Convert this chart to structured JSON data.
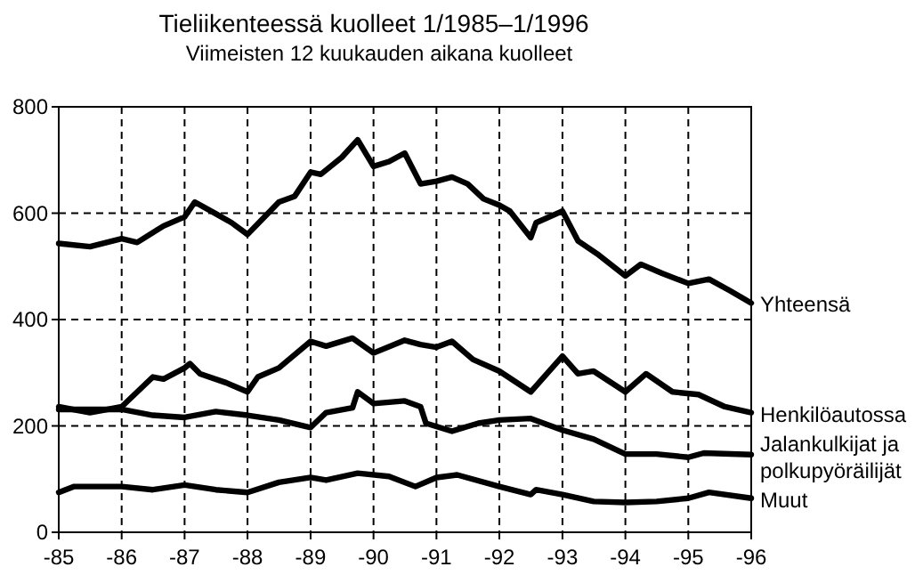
{
  "chart_data": {
    "type": "line",
    "title": "Tieliikenteessä kuolleet 1/1985–1/1996",
    "subtitle": "Viimeisten 12 kuukauden aikana kuolleet",
    "xlim": [
      "1985-01",
      "1996-01"
    ],
    "xticks": [
      {
        "value": "1985-01",
        "label": "-85"
      },
      {
        "value": "1986-01",
        "label": "-86"
      },
      {
        "value": "1987-01",
        "label": "-87"
      },
      {
        "value": "1988-01",
        "label": "-88"
      },
      {
        "value": "1989-01",
        "label": "-89"
      },
      {
        "value": "1990-01",
        "label": "-90"
      },
      {
        "value": "1991-01",
        "label": "-91"
      },
      {
        "value": "1992-01",
        "label": "-92"
      },
      {
        "value": "1993-01",
        "label": "-93"
      },
      {
        "value": "1994-01",
        "label": "-94"
      },
      {
        "value": "1995-01",
        "label": "-95"
      },
      {
        "value": "1996-01",
        "label": "-96"
      }
    ],
    "ylim": [
      0,
      800
    ],
    "yticks": [
      0,
      200,
      400,
      600,
      800
    ],
    "grid": true,
    "marker": "none",
    "line_style": "solid",
    "series": [
      {
        "name": "Yhteensä",
        "color": "#000000",
        "x": [
          "1985-01",
          "1985-07",
          "1986-01",
          "1986-04",
          "1986-09",
          "1987-01",
          "1987-03",
          "1987-07",
          "1987-10",
          "1988-01",
          "1988-07",
          "1988-10",
          "1989-01",
          "1989-03",
          "1989-07",
          "1989-10",
          "1990-01",
          "1990-04",
          "1990-07",
          "1990-10",
          "1991-01",
          "1991-04",
          "1991-07",
          "1991-10",
          "1992-01",
          "1992-03",
          "1992-07",
          "1992-08",
          "1993-01",
          "1993-04",
          "1993-08",
          "1994-01",
          "1994-04",
          "1994-08",
          "1995-01",
          "1995-05",
          "1995-09",
          "1996-01"
        ],
        "values": [
          543,
          537,
          552,
          545,
          576,
          593,
          621,
          599,
          582,
          560,
          621,
          632,
          677,
          673,
          705,
          738,
          688,
          697,
          713,
          655,
          660,
          668,
          655,
          627,
          615,
          604,
          554,
          582,
          604,
          548,
          521,
          482,
          504,
          487,
          468,
          476,
          454,
          431
        ]
      },
      {
        "name": "Henkilöautossa",
        "color": "#000000",
        "x": [
          "1985-01",
          "1985-07",
          "1986-01",
          "1986-07",
          "1986-09",
          "1987-01",
          "1987-02",
          "1987-04",
          "1987-09",
          "1988-01",
          "1988-03",
          "1988-07",
          "1989-01",
          "1989-04",
          "1989-09",
          "1990-01",
          "1990-07",
          "1990-10",
          "1991-01",
          "1991-04",
          "1991-08",
          "1992-01",
          "1992-07",
          "1993-01",
          "1993-04",
          "1993-07",
          "1994-01",
          "1994-05",
          "1994-10",
          "1995-03",
          "1995-08",
          "1996-01"
        ],
        "values": [
          236,
          225,
          236,
          292,
          288,
          309,
          317,
          298,
          281,
          264,
          292,
          309,
          359,
          350,
          365,
          337,
          361,
          353,
          348,
          359,
          325,
          303,
          264,
          331,
          298,
          303,
          264,
          298,
          264,
          259,
          236,
          225
        ]
      },
      {
        "name": "Jalankulkijat ja polkupyöräilijät",
        "color": "#000000",
        "x": [
          "1985-01",
          "1985-07",
          "1986-01",
          "1986-07",
          "1987-01",
          "1987-07",
          "1988-01",
          "1988-07",
          "1989-01",
          "1989-04",
          "1989-09",
          "1989-10",
          "1990-01",
          "1990-07",
          "1990-10",
          "1990-11",
          "1991-04",
          "1991-09",
          "1992-01",
          "1992-07",
          "1993-01",
          "1993-07",
          "1994-01",
          "1994-07",
          "1995-01",
          "1995-04",
          "1996-01"
        ],
        "values": [
          231,
          231,
          231,
          220,
          216,
          227,
          220,
          211,
          197,
          225,
          234,
          264,
          242,
          247,
          236,
          205,
          190,
          205,
          211,
          214,
          192,
          175,
          147,
          147,
          141,
          149,
          146
        ]
      },
      {
        "name": "Muut",
        "color": "#000000",
        "x": [
          "1985-01",
          "1985-04",
          "1986-01",
          "1986-07",
          "1987-01",
          "1987-07",
          "1988-01",
          "1988-07",
          "1989-01",
          "1989-04",
          "1989-10",
          "1990-04",
          "1990-09",
          "1991-01",
          "1991-05",
          "1992-01",
          "1992-07",
          "1992-08",
          "1993-01",
          "1993-07",
          "1994-01",
          "1994-07",
          "1995-01",
          "1995-05",
          "1996-01"
        ],
        "values": [
          75,
          86,
          86,
          80,
          89,
          80,
          75,
          94,
          103,
          98,
          111,
          105,
          86,
          103,
          108,
          86,
          71,
          80,
          71,
          58,
          56,
          58,
          64,
          75,
          64
        ]
      }
    ]
  }
}
